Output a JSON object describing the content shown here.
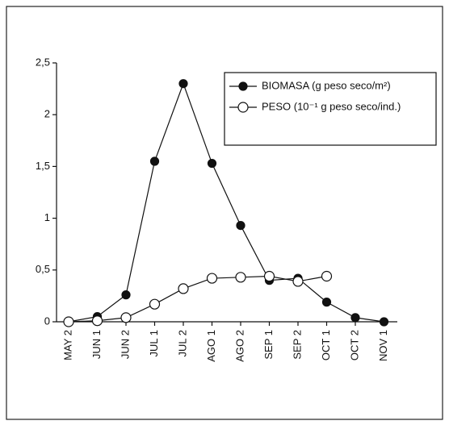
{
  "chart_data": {
    "type": "line",
    "categories": [
      "MAY 2",
      "JUN 1",
      "JUN 2",
      "JUL 1",
      "JUL 2",
      "AGO 1",
      "AGO 2",
      "SEP 1",
      "SEP 2",
      "OCT 1",
      "OCT 2",
      "NOV 1"
    ],
    "series": [
      {
        "name": "BIOMASA (g peso seco/m²)",
        "color": "#111111",
        "marker": "filled",
        "values": [
          0,
          0.05,
          0.26,
          1.55,
          2.3,
          1.53,
          0.93,
          0.4,
          0.42,
          0.19,
          0.04,
          0
        ]
      },
      {
        "name": "PESO (10⁻¹ g peso seco/ind.)",
        "color": "#111111",
        "marker": "open",
        "values": [
          0,
          0.01,
          0.04,
          0.17,
          0.32,
          0.42,
          0.43,
          0.44,
          0.39,
          0.44,
          null,
          null
        ]
      }
    ],
    "ylim": [
      0,
      2.5
    ],
    "yticks": [
      0,
      {
        "value": 0.5,
        "label": "0,5"
      },
      1,
      {
        "value": 1.5,
        "label": "1,5"
      },
      2,
      {
        "value": 2.5,
        "label": "2,5"
      }
    ],
    "grid": false,
    "legend": "upper right"
  }
}
